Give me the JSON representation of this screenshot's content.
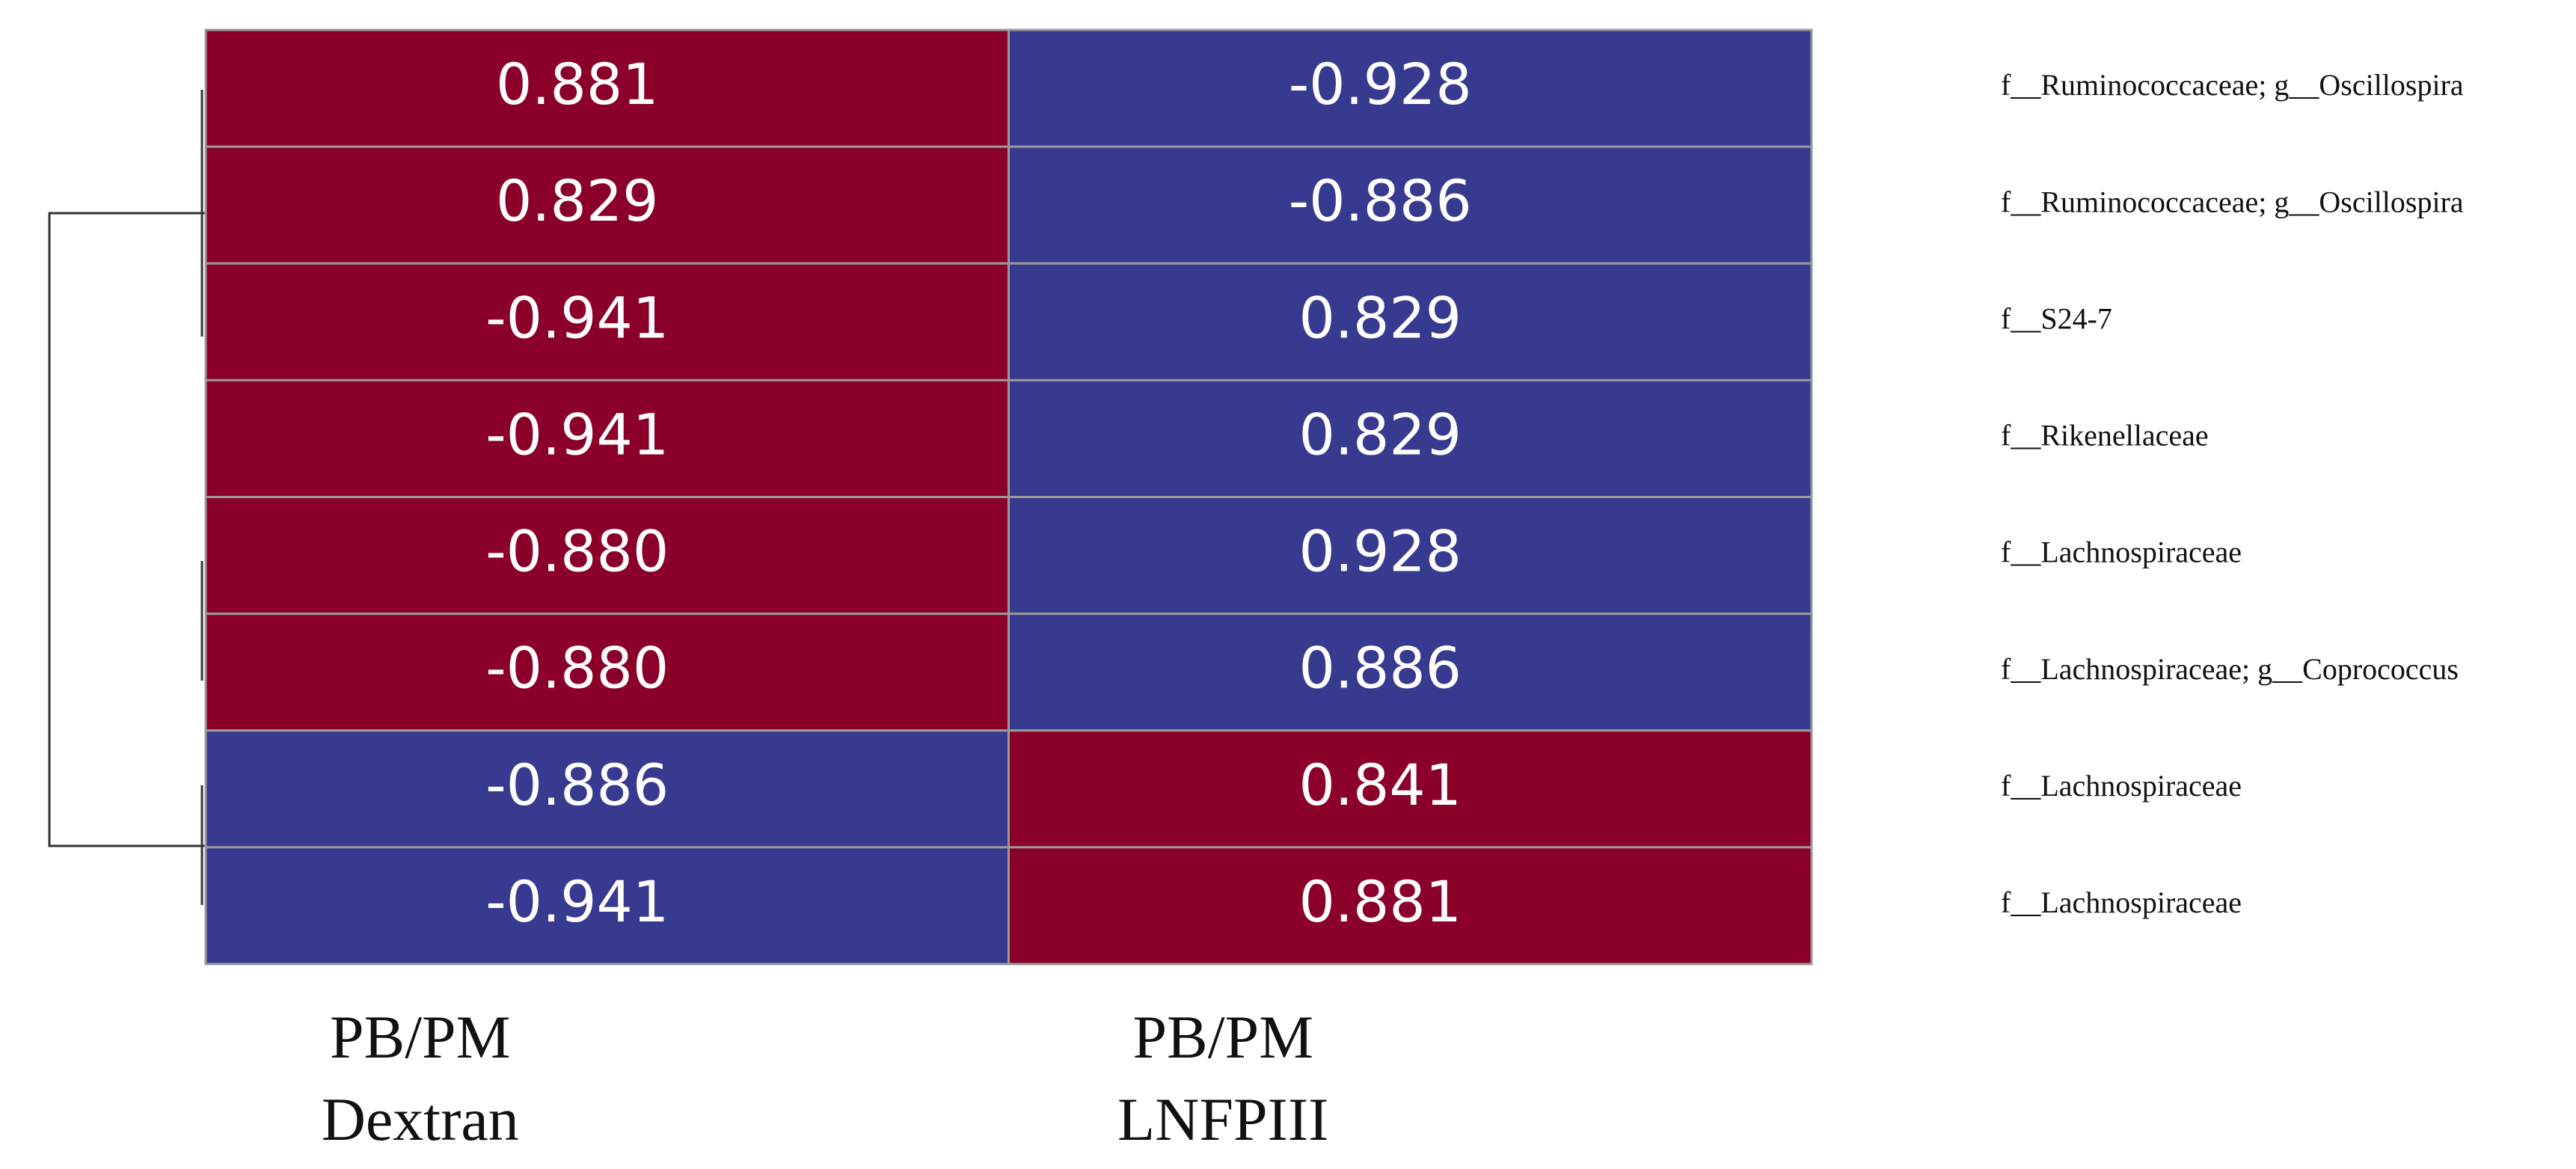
{
  "chart_data": {
    "type": "heatmap",
    "columns": [
      [
        "PB/PM",
        "Dextran"
      ],
      [
        "PB/PM",
        "LNFPIII"
      ]
    ],
    "rows": [
      "f__Ruminococcaceae; g__Oscillospira",
      "f__Ruminococcaceae; g__Oscillospira",
      "f__S24-7",
      "f__Rikenellaceae",
      "f__Lachnospiraceae",
      "f__Lachnospiraceae; g__Coprococcus",
      "f__Lachnospiraceae",
      "f__Lachnospiraceae"
    ],
    "values": [
      [
        0.881,
        -0.928
      ],
      [
        0.829,
        -0.886
      ],
      [
        -0.941,
        0.829
      ],
      [
        -0.941,
        0.829
      ],
      [
        -0.88,
        0.928
      ],
      [
        -0.88,
        0.886
      ],
      [
        -0.886,
        0.841
      ],
      [
        -0.941,
        0.881
      ]
    ],
    "value_labels": [
      [
        "0.881",
        "-0.928"
      ],
      [
        "0.829",
        "-0.886"
      ],
      [
        "-0.941",
        "0.829"
      ],
      [
        "-0.941",
        "0.829"
      ],
      [
        "-0.880",
        "0.928"
      ],
      [
        "-0.880",
        "0.886"
      ],
      [
        "-0.886",
        "0.841"
      ],
      [
        "-0.941",
        "0.881"
      ]
    ],
    "colors": [
      [
        "#8b0028",
        "#373a8f"
      ],
      [
        "#8b0028",
        "#373a8f"
      ],
      [
        "#8b0028",
        "#373a8f"
      ],
      [
        "#8b0028",
        "#373a8f"
      ],
      [
        "#8b0028",
        "#373a8f"
      ],
      [
        "#8b0028",
        "#373a8f"
      ],
      [
        "#373a8f",
        "#8b0028"
      ],
      [
        "#373a8f",
        "#8b0028"
      ]
    ]
  }
}
